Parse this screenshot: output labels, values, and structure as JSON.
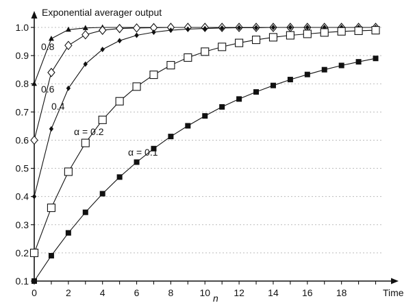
{
  "chart_data": {
    "type": "line",
    "ylabel": "Exponential averager output",
    "xlabel_right": "Time",
    "xlabel_mid": "n",
    "x_ticks": [
      "0",
      "2",
      "4",
      "6",
      "8",
      "10",
      "12",
      "14",
      "16",
      "18"
    ],
    "y_ticks": [
      "0.1",
      "0.2",
      "0.3",
      "0.4",
      "0.5",
      "0.6",
      "0.7",
      "0.8",
      "0.9",
      "1.0"
    ],
    "xlim": [
      0,
      20.3
    ],
    "ylim": [
      0.1,
      1.0
    ],
    "grid": "horizontal dotted",
    "x": [
      0,
      1,
      2,
      3,
      4,
      5,
      6,
      7,
      8,
      9,
      10,
      11,
      12,
      13,
      14,
      15,
      16,
      17,
      18,
      19,
      20
    ],
    "series": [
      {
        "label_text": "0.8",
        "marker": "filled-triangle",
        "values": [
          0.8,
          0.96,
          0.992,
          0.998,
          1.0,
          1.0,
          1.0,
          1.0,
          1.0,
          1.0,
          1.0,
          1.0,
          1.0,
          1.0,
          1.0,
          1.0,
          1.0,
          1.0,
          1.0,
          1.0,
          1.0
        ]
      },
      {
        "label_text": "0.6",
        "marker": "open-diamond",
        "values": [
          0.6,
          0.84,
          0.936,
          0.974,
          0.99,
          0.996,
          0.998,
          0.999,
          1.0,
          1.0,
          1.0,
          1.0,
          1.0,
          1.0,
          1.0,
          1.0,
          1.0,
          1.0,
          1.0,
          1.0,
          1.0
        ]
      },
      {
        "label_text": "0.4",
        "marker": "filled-diamond",
        "values": [
          0.4,
          0.64,
          0.784,
          0.87,
          0.922,
          0.953,
          0.972,
          0.983,
          0.99,
          0.994,
          0.996,
          0.998,
          0.999,
          0.999,
          1.0,
          1.0,
          1.0,
          1.0,
          1.0,
          1.0,
          1.0
        ]
      },
      {
        "label_text": "α = 0.2",
        "marker": "open-square",
        "values": [
          0.2,
          0.36,
          0.488,
          0.59,
          0.672,
          0.738,
          0.79,
          0.832,
          0.866,
          0.893,
          0.914,
          0.931,
          0.945,
          0.956,
          0.965,
          0.972,
          0.977,
          0.982,
          0.986,
          0.988,
          0.99
        ]
      },
      {
        "label_text": "α = 0.1",
        "marker": "filled-square",
        "values": [
          0.1,
          0.19,
          0.271,
          0.344,
          0.41,
          0.469,
          0.522,
          0.57,
          0.613,
          0.651,
          0.686,
          0.718,
          0.746,
          0.771,
          0.794,
          0.815,
          0.833,
          0.85,
          0.865,
          0.878,
          0.89
        ]
      }
    ],
    "colors": {
      "line": "#111111",
      "grid": "#bbbbbb",
      "background": "#ffffff"
    }
  }
}
